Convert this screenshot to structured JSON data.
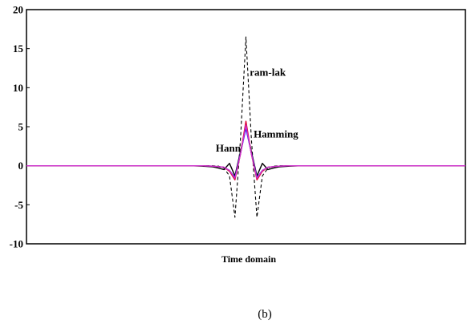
{
  "chart_data": {
    "type": "line",
    "xlabel": "Time domain",
    "ylabel": "",
    "ylim": [
      -10,
      20
    ],
    "yticks": [
      -10,
      -5,
      0,
      5,
      10,
      15,
      20
    ],
    "xlim": [
      -40,
      40
    ],
    "grid": false,
    "annotations": [
      {
        "text": "ram-lak",
        "x": 0.7,
        "y": 11.5
      },
      {
        "text": "Hamming",
        "x": 1.4,
        "y": 3.6
      },
      {
        "text": "Hann",
        "x": -5.5,
        "y": 1.8
      }
    ],
    "series": [
      {
        "name": "ram-lak",
        "color": "#000000",
        "dash": "dashed",
        "points": [
          [
            -40,
            0
          ],
          [
            -6,
            0
          ],
          [
            -5,
            -0.05
          ],
          [
            -4,
            -0.3
          ],
          [
            -3,
            -1.3
          ],
          [
            -2,
            -6.6
          ],
          [
            -1,
            3.4
          ],
          [
            0,
            16.5
          ],
          [
            1,
            3.4
          ],
          [
            2,
            -6.6
          ],
          [
            3,
            -1.3
          ],
          [
            4,
            -0.3
          ],
          [
            5,
            -0.05
          ],
          [
            6,
            0
          ],
          [
            40,
            0
          ]
        ]
      },
      {
        "name": "Hamming",
        "color": "#000000",
        "dash": "solid",
        "points": [
          [
            -40,
            0
          ],
          [
            -10,
            0
          ],
          [
            -8,
            -0.05
          ],
          [
            -6,
            -0.15
          ],
          [
            -5,
            -0.3
          ],
          [
            -4,
            -0.5
          ],
          [
            -3,
            0.3
          ],
          [
            -2,
            -1.3
          ],
          [
            -1,
            1.8
          ],
          [
            0,
            5.0
          ],
          [
            1,
            1.8
          ],
          [
            2,
            -1.3
          ],
          [
            3,
            0.3
          ],
          [
            4,
            -0.5
          ],
          [
            5,
            -0.3
          ],
          [
            6,
            -0.15
          ],
          [
            8,
            -0.05
          ],
          [
            10,
            0
          ],
          [
            40,
            0
          ]
        ]
      },
      {
        "name": "Hann",
        "color": "#0000ff",
        "dash": "solid",
        "points": [
          [
            -40,
            0
          ],
          [
            -8,
            0
          ],
          [
            -6,
            -0.05
          ],
          [
            -4,
            -0.2
          ],
          [
            -3,
            -0.6
          ],
          [
            -2,
            -1.5
          ],
          [
            -1,
            1.6
          ],
          [
            0,
            4.8
          ],
          [
            1,
            1.6
          ],
          [
            2,
            -1.5
          ],
          [
            3,
            -0.6
          ],
          [
            4,
            -0.2
          ],
          [
            6,
            -0.05
          ],
          [
            8,
            0
          ],
          [
            40,
            0
          ]
        ]
      },
      {
        "name": "red",
        "color": "#dd0033",
        "dash": "solid",
        "points": [
          [
            -40,
            0
          ],
          [
            -8,
            0
          ],
          [
            -6,
            -0.05
          ],
          [
            -4,
            -0.2
          ],
          [
            -3,
            -0.7
          ],
          [
            -2,
            -1.8
          ],
          [
            -1,
            1.5
          ],
          [
            0,
            5.7
          ],
          [
            1,
            1.5
          ],
          [
            2,
            -1.8
          ],
          [
            3,
            -0.7
          ],
          [
            4,
            -0.2
          ],
          [
            6,
            -0.05
          ],
          [
            8,
            0
          ],
          [
            40,
            0
          ]
        ]
      },
      {
        "name": "magenta",
        "color": "#cc33cc",
        "dash": "solid",
        "points": [
          [
            -40,
            0
          ],
          [
            -8,
            0
          ],
          [
            -6,
            -0.05
          ],
          [
            -4,
            -0.2
          ],
          [
            -3,
            -0.6
          ],
          [
            -2,
            -1.6
          ],
          [
            -1,
            1.5
          ],
          [
            0,
            5.2
          ],
          [
            1,
            1.5
          ],
          [
            2,
            -1.6
          ],
          [
            3,
            -0.6
          ],
          [
            4,
            -0.2
          ],
          [
            6,
            -0.05
          ],
          [
            8,
            0
          ],
          [
            40,
            0
          ]
        ]
      }
    ]
  },
  "caption": "(b)"
}
